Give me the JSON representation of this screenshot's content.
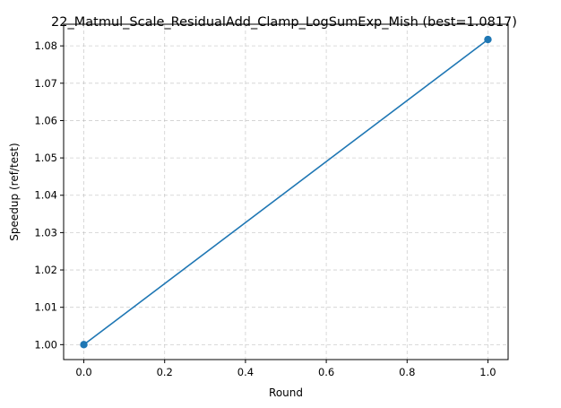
{
  "chart_data": {
    "type": "line",
    "title": "22_Matmul_Scale_ResidualAdd_Clamp_LogSumExp_Mish (best=1.0817)",
    "xlabel": "Round",
    "ylabel": "Speedup (ref/test)",
    "xlim": [
      -0.05,
      1.05
    ],
    "ylim": [
      0.996,
      1.0858
    ],
    "x_ticks": [
      0.0,
      0.2,
      0.4,
      0.6,
      0.8,
      1.0
    ],
    "x_tick_labels": [
      "0.0",
      "0.2",
      "0.4",
      "0.6",
      "0.8",
      "1.0"
    ],
    "y_ticks": [
      1.0,
      1.01,
      1.02,
      1.03,
      1.04,
      1.05,
      1.06,
      1.07,
      1.08
    ],
    "y_tick_labels": [
      "1.00",
      "1.01",
      "1.02",
      "1.03",
      "1.04",
      "1.05",
      "1.06",
      "1.07",
      "1.08"
    ],
    "grid": true,
    "series": [
      {
        "x": [
          0,
          1
        ],
        "values": [
          1.0,
          1.0817
        ],
        "color": "#1f77b4",
        "marker": "circle"
      }
    ]
  }
}
